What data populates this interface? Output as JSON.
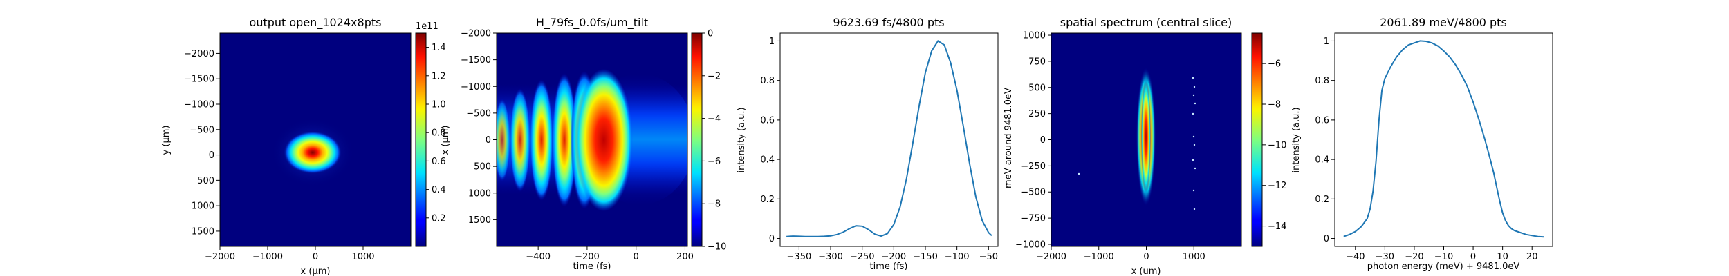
{
  "chart_data": [
    {
      "type": "heatmap",
      "title": "output open_1024x8pts",
      "xlabel": "x (µm)",
      "ylabel": "y (µm)",
      "xlim": [
        -2000,
        2000
      ],
      "ylim": [
        1800,
        -2400
      ],
      "xticks": [
        -2000,
        -1000,
        0,
        1000
      ],
      "yticks": [
        -2000,
        -1500,
        -1000,
        -500,
        0,
        500,
        1000,
        1500
      ],
      "colorbar": {
        "range": [
          0,
          1.5
        ],
        "ticks": [
          0.2,
          0.4,
          0.6,
          0.8,
          1.0,
          1.2,
          1.4
        ],
        "tick_labels": [
          "0.2",
          "0.4",
          "0.6",
          "0.8",
          "1.0",
          "1.2",
          "1.4"
        ],
        "offset_label": "1e11",
        "colormap": "jet"
      }
    },
    {
      "type": "heatmap",
      "title": "H_79fs_0.0fs/um_tilt",
      "xlabel": "time (fs)",
      "ylabel": "x (µm)",
      "xlim": [
        -570,
        210
      ],
      "ylim": [
        2000,
        -2000
      ],
      "xticks": [
        -400,
        -200,
        0,
        200
      ],
      "yticks": [
        -2000,
        -1500,
        -1000,
        -500,
        0,
        500,
        1000,
        1500
      ],
      "colorbar": {
        "range": [
          -10,
          0
        ],
        "ticks": [
          0,
          -2,
          -4,
          -6,
          -8,
          -10
        ],
        "tick_labels": [
          "0",
          "−2",
          "−4",
          "−6",
          "−8",
          "−10"
        ],
        "colormap": "jet"
      }
    },
    {
      "type": "line",
      "title": "9623.69 fs/4800 pts",
      "xlabel": "time (fs)",
      "ylabel": "intensity (a.u.)",
      "xlim": [
        -380,
        -35
      ],
      "ylim": [
        -0.04,
        1.04
      ],
      "xticks": [
        -350,
        -300,
        -250,
        -200,
        -150,
        -100,
        -50
      ],
      "yticks": [
        0.0,
        0.2,
        0.4,
        0.6,
        0.8,
        1.0
      ],
      "series": [
        {
          "x": [
            -370,
            -360,
            -350,
            -340,
            -330,
            -320,
            -310,
            -300,
            -290,
            -280,
            -270,
            -260,
            -250,
            -240,
            -230,
            -220,
            -210,
            -200,
            -190,
            -180,
            -170,
            -160,
            -150,
            -140,
            -130,
            -120,
            -110,
            -100,
            -90,
            -80,
            -70,
            -60,
            -50,
            -45
          ],
          "y": [
            0.01,
            0.012,
            0.011,
            0.01,
            0.01,
            0.01,
            0.011,
            0.013,
            0.02,
            0.032,
            0.05,
            0.064,
            0.062,
            0.045,
            0.022,
            0.012,
            0.025,
            0.07,
            0.16,
            0.3,
            0.48,
            0.67,
            0.84,
            0.95,
            1.0,
            0.98,
            0.89,
            0.75,
            0.57,
            0.38,
            0.21,
            0.09,
            0.03,
            0.015
          ]
        }
      ]
    },
    {
      "type": "heatmap",
      "title": "spatial spectrum (central slice)",
      "xlabel": "x (um)",
      "ylabel": "meV around 9481.0eV",
      "xlim": [
        -2000,
        2000
      ],
      "ylim": [
        -1020,
        1020
      ],
      "xticks": [
        -2000,
        -1000,
        0,
        1000
      ],
      "yticks": [
        1000,
        750,
        500,
        250,
        0,
        -250,
        -500,
        -750,
        -1000
      ],
      "colorbar": {
        "range": [
          -15,
          -4.5
        ],
        "ticks": [
          -6,
          -8,
          -10,
          -12,
          -14
        ],
        "tick_labels": [
          "−6",
          "−8",
          "−10",
          "−12",
          "−14"
        ],
        "colormap": "jet"
      }
    },
    {
      "type": "line",
      "title": "2061.89 meV/4800 pts",
      "xlabel": "photon energy (meV) + 9481.0eV",
      "ylabel": "intensity (a.u.)",
      "xlim": [
        -47,
        27
      ],
      "ylim": [
        -0.04,
        1.04
      ],
      "xticks": [
        -40,
        -30,
        -20,
        -10,
        0,
        10,
        20
      ],
      "yticks": [
        0.0,
        0.2,
        0.4,
        0.6,
        0.8,
        1.0
      ],
      "series": [
        {
          "x": [
            -44,
            -42,
            -40,
            -38,
            -36,
            -35,
            -34,
            -33,
            -32,
            -31,
            -30,
            -29,
            -28,
            -26,
            -24,
            -22,
            -20,
            -18,
            -16,
            -14,
            -12,
            -10,
            -8,
            -6,
            -4,
            -2,
            0,
            2,
            4,
            6,
            7,
            8,
            9,
            10,
            11,
            12,
            13,
            14,
            16,
            18,
            20,
            22,
            24
          ],
          "y": [
            0.01,
            0.02,
            0.035,
            0.06,
            0.1,
            0.15,
            0.24,
            0.39,
            0.6,
            0.75,
            0.81,
            0.84,
            0.87,
            0.92,
            0.955,
            0.98,
            0.99,
            1.0,
            0.998,
            0.99,
            0.975,
            0.95,
            0.92,
            0.88,
            0.83,
            0.77,
            0.69,
            0.6,
            0.5,
            0.39,
            0.33,
            0.26,
            0.19,
            0.13,
            0.09,
            0.065,
            0.05,
            0.04,
            0.03,
            0.02,
            0.015,
            0.01,
            0.008
          ]
        }
      ]
    }
  ]
}
